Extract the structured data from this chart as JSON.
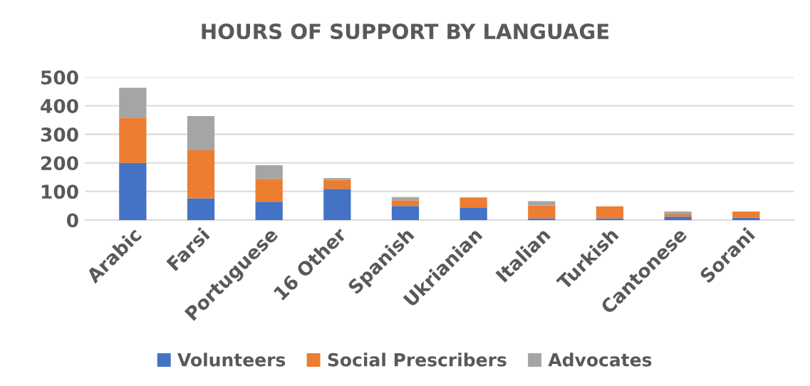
{
  "chart_data": {
    "type": "bar",
    "title": "HOURS OF SUPPORT BY LANGUAGE",
    "stacked": true,
    "categories": [
      "Arabic",
      "Farsi",
      "Portuguese",
      "16 Other",
      "Spanish",
      "Ukrianian",
      "Italian",
      "Turkish",
      "Cantonese",
      "Sorani"
    ],
    "series": [
      {
        "name": "Volunteers",
        "color": "#4472c4",
        "values": [
          200,
          76,
          64,
          109,
          49,
          44,
          6,
          6,
          12,
          8
        ]
      },
      {
        "name": "Social Prescribers",
        "color": "#ed7d31",
        "values": [
          158,
          168,
          80,
          31,
          20,
          35,
          45,
          42,
          8,
          22
        ]
      },
      {
        "name": "Advocates",
        "color": "#a5a5a5",
        "values": [
          105,
          120,
          48,
          7,
          11,
          0,
          15,
          0,
          10,
          0
        ]
      }
    ],
    "ylim": [
      0,
      500
    ],
    "yticks": [
      0,
      100,
      200,
      300,
      400,
      500
    ],
    "grid": "y",
    "legend": "bottom"
  }
}
